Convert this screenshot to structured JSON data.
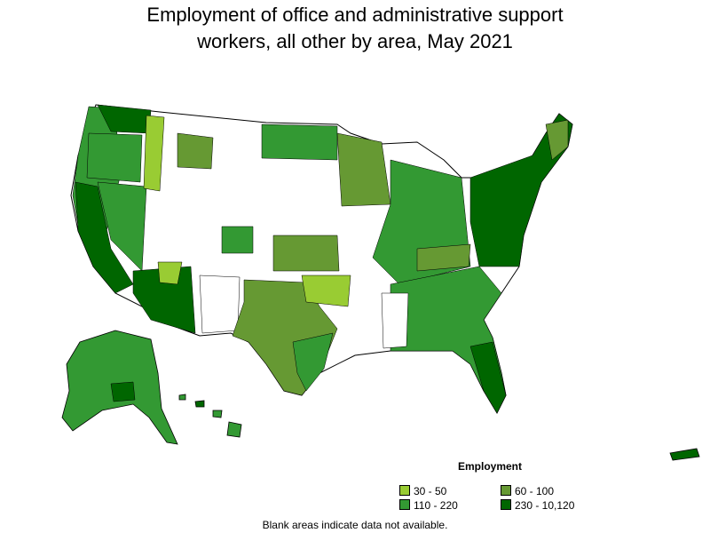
{
  "title_line1": "Employment of office and administrative support",
  "title_line2": "workers, all other by area, May 2021",
  "legend": {
    "title": "Employment",
    "items": [
      {
        "label": "30 - 50",
        "color": "#99cc33"
      },
      {
        "label": "60 - 100",
        "color": "#669933"
      },
      {
        "label": "110 - 220",
        "color": "#339933"
      },
      {
        "label": "230 - 10,120",
        "color": "#006600"
      }
    ]
  },
  "footnote": "Blank areas indicate data not available.",
  "colors": {
    "blank": "#ffffff",
    "border": "#000000"
  }
}
